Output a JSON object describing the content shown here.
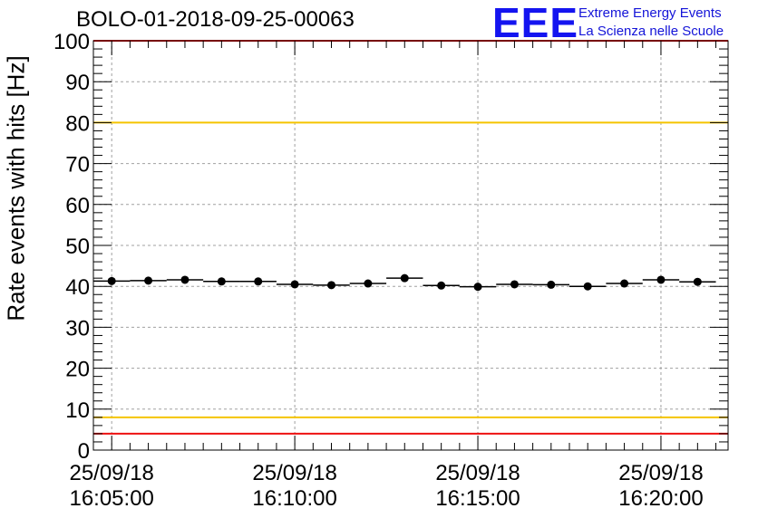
{
  "logo": {
    "mark": "EEE",
    "line1": "Extreme Energy Events",
    "line2": "La Scienza nelle Scuole"
  },
  "colors": {
    "upper_threshold": "#f5c400",
    "lower_threshold": "#f5c400",
    "limit_lines": "#ee1111",
    "logo": "#1414f0",
    "points": "#000000",
    "grid": "#a0a0a0"
  },
  "chart_data": {
    "type": "scatter",
    "title": "BOLO-01-2018-09-25-00063",
    "xlabel": "",
    "ylabel": "Rate events with hits [Hz]",
    "ylim": [
      0,
      100
    ],
    "yticks": [
      "0",
      "10",
      "20",
      "30",
      "40",
      "50",
      "60",
      "70",
      "80",
      "90",
      "100"
    ],
    "xlim": [
      "25/09/18 16:04:30",
      "25/09/18 16:21:50"
    ],
    "xticks": [
      {
        "date": "25/09/18",
        "time": "16:05:00"
      },
      {
        "date": "25/09/18",
        "time": "16:10:00"
      },
      {
        "date": "25/09/18",
        "time": "16:15:00"
      },
      {
        "date": "25/09/18",
        "time": "16:20:00"
      }
    ],
    "grid": true,
    "bin_width_seconds": 60,
    "x": [
      "16:05:00",
      "16:06:00",
      "16:07:00",
      "16:08:00",
      "16:09:00",
      "16:10:00",
      "16:11:00",
      "16:12:00",
      "16:13:00",
      "16:14:00",
      "16:15:00",
      "16:16:00",
      "16:17:00",
      "16:18:00",
      "16:19:00",
      "16:20:00",
      "16:21:00"
    ],
    "values": [
      41.3,
      41.4,
      41.6,
      41.2,
      41.2,
      40.5,
      40.3,
      40.7,
      42.0,
      40.2,
      39.9,
      40.5,
      40.4,
      40.0,
      40.7,
      41.6,
      41.1
    ],
    "reference_lines": [
      {
        "y": 100,
        "color": "#ee1111"
      },
      {
        "y": 80,
        "color": "#f5c400"
      },
      {
        "y": 8,
        "color": "#f5c400"
      },
      {
        "y": 4,
        "color": "#ee1111"
      }
    ]
  }
}
